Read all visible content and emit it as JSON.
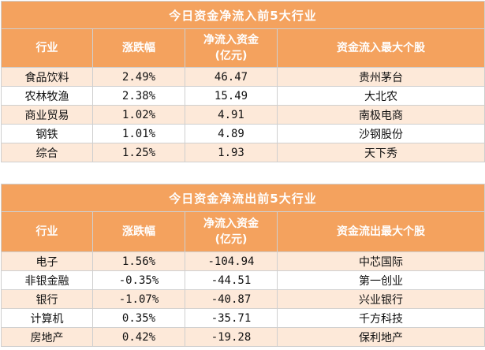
{
  "inflow": {
    "title": "今日资金净流入前5大行业",
    "headers": [
      "行业",
      "涨跌幅",
      "净流入资金\n(亿元)",
      "资金流入最大个股"
    ],
    "rows": [
      [
        "食品饮料",
        "2.49%",
        "46.47",
        "贵州茅台"
      ],
      [
        "农林牧渔",
        "2.38%",
        "15.49",
        "大北农"
      ],
      [
        "商业贸易",
        "1.02%",
        "4.91",
        "南极电商"
      ],
      [
        "钢铁",
        "1.01%",
        "4.89",
        "沙钢股份"
      ],
      [
        "综合",
        "1.25%",
        "1.93",
        "天下秀"
      ]
    ]
  },
  "outflow": {
    "title": "今日资金净流出前5大行业",
    "headers": [
      "行业",
      "涨跌幅",
      "净流入资金\n(亿元)",
      "资金流出最大个股"
    ],
    "rows": [
      [
        "电子",
        "1.56%",
        "-104.94",
        "中芯国际"
      ],
      [
        "非银金融",
        "-0.35%",
        "-44.51",
        "第一创业"
      ],
      [
        "银行",
        "-1.07%",
        "-40.87",
        "兴业银行"
      ],
      [
        "计算机",
        "0.35%",
        "-35.71",
        "千方科技"
      ],
      [
        "房地产",
        "0.42%",
        "-19.28",
        "保利地产"
      ]
    ]
  },
  "colors": {
    "header_bg": "#f4a25e",
    "stripe_bg": "#fde9d9",
    "header_text": "#ffffff"
  }
}
